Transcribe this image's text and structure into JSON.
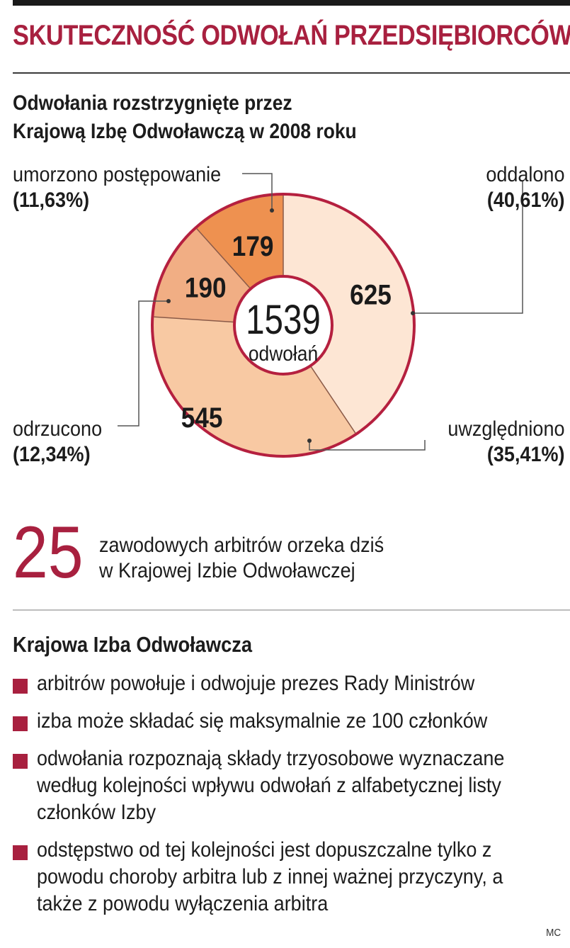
{
  "header": {
    "title": "SKUTECZNOŚĆ ODWOŁAŃ PRZEDSIĘBIORCÓW",
    "subtitle_line1": "Odwołania rozstrzygnięte przez",
    "subtitle_line2": "Krajową Izbę Odwoławczą w 2008 roku"
  },
  "chart_data": {
    "type": "pie",
    "variant": "donut",
    "title": "Odwołania rozstrzygnięte przez Krajową Izbę Odwoławczą w 2008 roku",
    "center_total": "1539",
    "center_label": "odwołań",
    "slices": [
      {
        "label": "oddalono",
        "value": 625,
        "percent": "(40,61%)",
        "color": "#fde6d4"
      },
      {
        "label": "uwzględniono",
        "value": 545,
        "percent": "(35,41%)",
        "color": "#f8c9a3"
      },
      {
        "label": "odrzucono",
        "value": 190,
        "percent": "(12,34%)",
        "color": "#f1ae84"
      },
      {
        "label": "umorzono postępowanie",
        "value": 179,
        "percent": "(11,63%)",
        "color": "#ee9150"
      }
    ],
    "ring_color": "#b5203f"
  },
  "stat": {
    "number": "25",
    "line1": "zawodowych arbitrów orzeka dziś",
    "line2": "w Krajowej Izbie Odwoławczej"
  },
  "info": {
    "title": "Krajowa Izba Odwoławcza",
    "items": [
      "arbitrów powołuje i odwojuje prezes Rady Ministrów",
      "izba może składać się maksymalnie ze 100 członków",
      "odwołania rozpoznają składy trzyosobowe wyznaczane według kolejności wpływu odwołań z alfabetycznej listy członków Izby",
      "odstępstwo od tej kolejności jest dopuszczalne tylko z powodu choroby arbitra lub z innej ważnej przyczyny, a także z powodu wyłączenia arbitra"
    ]
  },
  "credit": "MC"
}
